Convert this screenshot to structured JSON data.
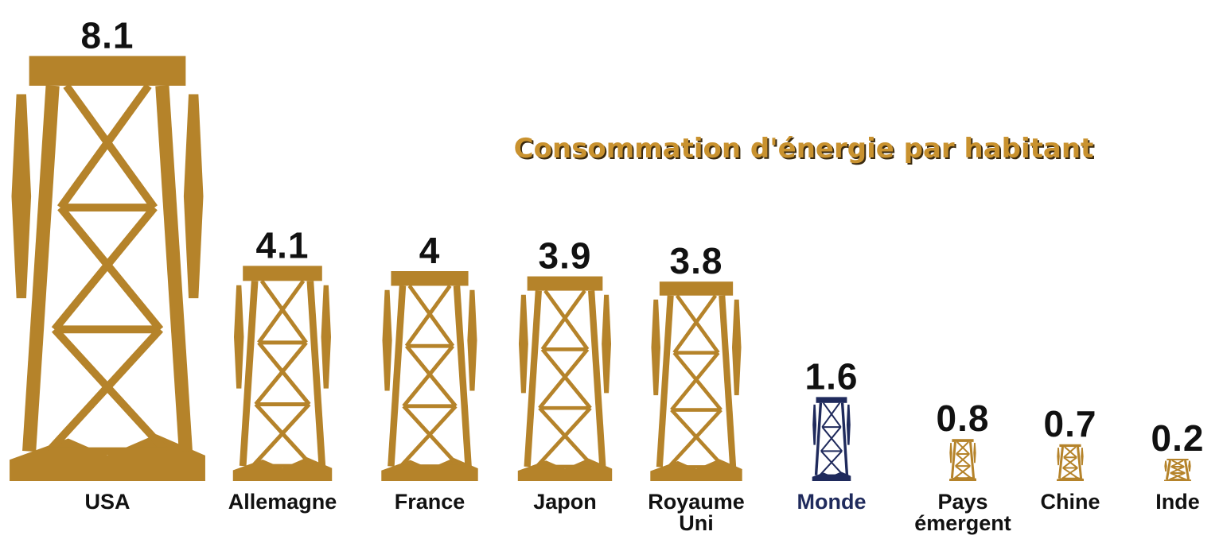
{
  "chart_data": {
    "type": "pictogram",
    "title": "Consommation d'énergie par habitant",
    "categories": [
      "USA",
      "Allemagne",
      "France",
      "Japon",
      "Royaume Uni",
      "Monde",
      "Pays émergent",
      "Chine",
      "Inde"
    ],
    "values": [
      8.1,
      4.1,
      4,
      3.9,
      3.8,
      1.6,
      0.8,
      0.7,
      0.2
    ],
    "colors": [
      "#b5832a",
      "#b5832a",
      "#b5832a",
      "#b5832a",
      "#b5832a",
      "#1f2a5c",
      "#b5832a",
      "#b5832a",
      "#b5832a"
    ]
  }
}
